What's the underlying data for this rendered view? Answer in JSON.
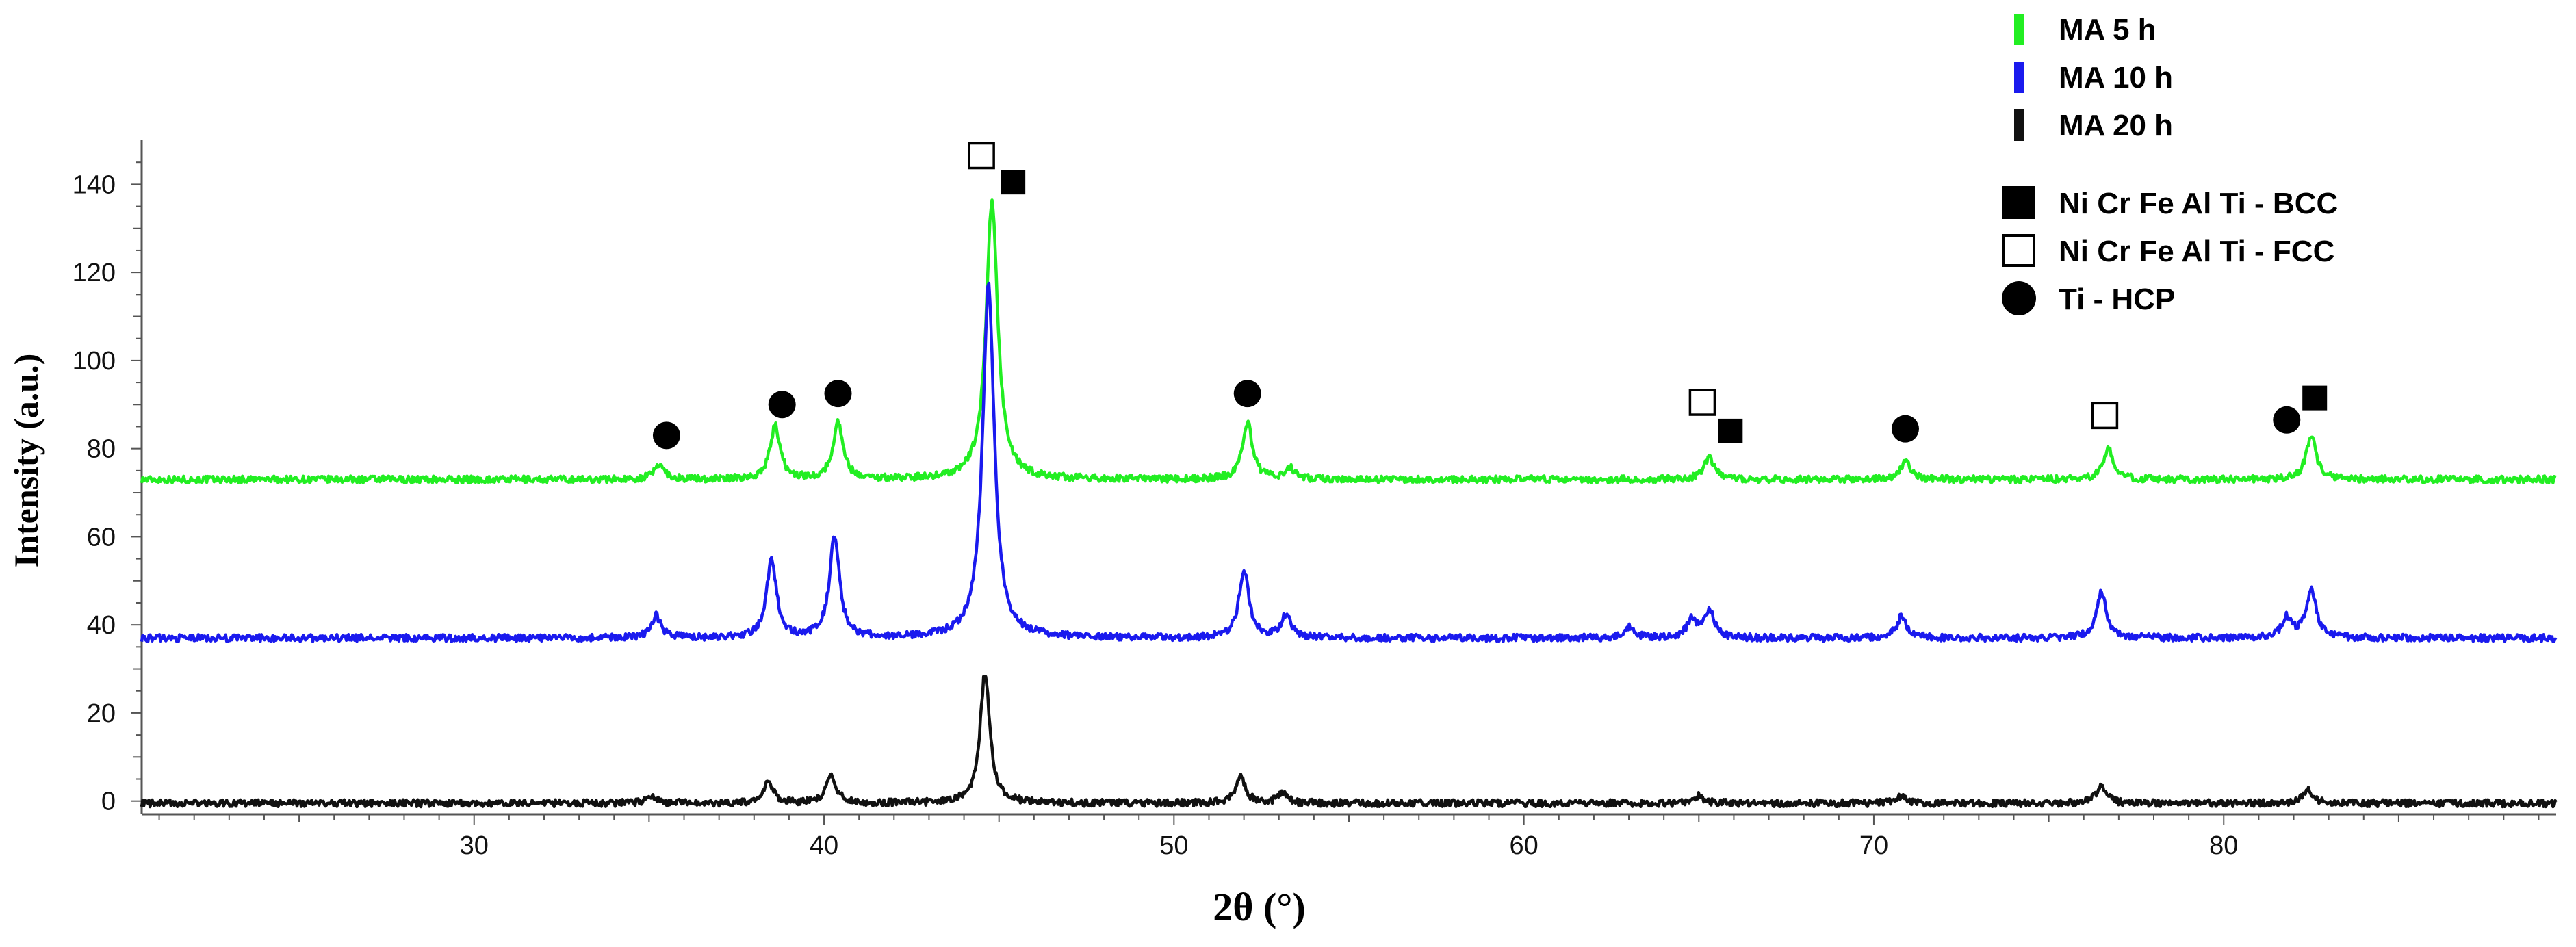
{
  "chart_data": {
    "type": "line",
    "title": "",
    "xlabel": "2θ (°)",
    "ylabel": "Intensity (a.u.)",
    "xlim": [
      20.5,
      89.5
    ],
    "ylim": [
      -3,
      150
    ],
    "x_ticks": [
      30,
      40,
      50,
      60,
      70,
      80
    ],
    "y_ticks": [
      0,
      20,
      40,
      60,
      80,
      100,
      120,
      140
    ],
    "grid": false,
    "legend_position": "top-right",
    "series": [
      {
        "name": "MA 5 h",
        "color": "#22ee22",
        "baseline": 73,
        "peaks": [
          {
            "x": 35.3,
            "y": 76.5
          },
          {
            "x": 38.6,
            "y": 85
          },
          {
            "x": 40.4,
            "y": 86
          },
          {
            "x": 44.8,
            "y": 136
          },
          {
            "x": 52.1,
            "y": 86
          },
          {
            "x": 53.3,
            "y": 75.5
          },
          {
            "x": 65.3,
            "y": 78
          },
          {
            "x": 70.9,
            "y": 77
          },
          {
            "x": 76.7,
            "y": 80
          },
          {
            "x": 82.5,
            "y": 83
          }
        ]
      },
      {
        "name": "MA 10 h",
        "color": "#1a1aee",
        "baseline": 37,
        "peaks": [
          {
            "x": 35.2,
            "y": 42
          },
          {
            "x": 38.5,
            "y": 54.5
          },
          {
            "x": 40.3,
            "y": 60
          },
          {
            "x": 44.7,
            "y": 117
          },
          {
            "x": 52.0,
            "y": 52.5
          },
          {
            "x": 53.2,
            "y": 42
          },
          {
            "x": 63.0,
            "y": 39.5
          },
          {
            "x": 64.8,
            "y": 41
          },
          {
            "x": 65.3,
            "y": 43
          },
          {
            "x": 70.8,
            "y": 42
          },
          {
            "x": 76.5,
            "y": 47.5
          },
          {
            "x": 81.8,
            "y": 41.5
          },
          {
            "x": 82.5,
            "y": 48
          }
        ]
      },
      {
        "name": "MA 20 h",
        "color": "#111111",
        "baseline": -0.5,
        "peaks": [
          {
            "x": 35.1,
            "y": 1
          },
          {
            "x": 38.4,
            "y": 4.5
          },
          {
            "x": 40.2,
            "y": 6
          },
          {
            "x": 44.6,
            "y": 29
          },
          {
            "x": 51.9,
            "y": 5.5
          },
          {
            "x": 53.1,
            "y": 1.5
          },
          {
            "x": 65.0,
            "y": 1.2
          },
          {
            "x": 70.8,
            "y": 1.2
          },
          {
            "x": 76.5,
            "y": 3.5
          },
          {
            "x": 82.4,
            "y": 2.5
          }
        ]
      }
    ],
    "phase_markers": [
      {
        "phase": "fcc",
        "x": 44.5,
        "y": 146.5
      },
      {
        "phase": "bcc",
        "x": 45.4,
        "y": 140.5
      },
      {
        "phase": "hcp",
        "x": 35.5,
        "y": 83
      },
      {
        "phase": "hcp",
        "x": 38.8,
        "y": 90
      },
      {
        "phase": "hcp",
        "x": 40.4,
        "y": 92.5
      },
      {
        "phase": "hcp",
        "x": 52.1,
        "y": 92.5
      },
      {
        "phase": "fcc",
        "x": 65.1,
        "y": 90.5
      },
      {
        "phase": "bcc",
        "x": 65.9,
        "y": 84
      },
      {
        "phase": "hcp",
        "x": 70.9,
        "y": 84.5
      },
      {
        "phase": "fcc",
        "x": 76.6,
        "y": 87.5
      },
      {
        "phase": "hcp",
        "x": 81.8,
        "y": 86.5
      },
      {
        "phase": "bcc",
        "x": 82.6,
        "y": 91.5
      }
    ]
  },
  "legend": {
    "series": [
      {
        "label": "MA 5 h",
        "color": "#22ee22"
      },
      {
        "label": "MA 10 h",
        "color": "#1a1aee"
      },
      {
        "label": "MA 20 h",
        "color": "#111111"
      }
    ],
    "phases": [
      {
        "label": "Ni Cr Fe Al Ti - BCC",
        "symbol": "filled-square-icon"
      },
      {
        "label": "Ni Cr Fe Al Ti - FCC",
        "symbol": "open-square-icon"
      },
      {
        "label": "Ti - HCP",
        "symbol": "filled-circle-icon"
      }
    ]
  }
}
